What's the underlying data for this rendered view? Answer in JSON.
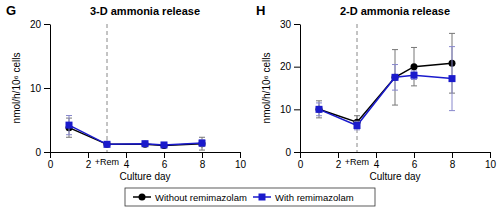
{
  "chart_data": [
    {
      "type": "line",
      "panel_label": "G",
      "title": "3-D ammonia release",
      "x_label": "Culture day",
      "y_label": "nmol/h/10⁶ cells",
      "x": [
        1,
        3,
        5,
        6,
        8
      ],
      "xlim": [
        0,
        10
      ],
      "xticks": [
        0,
        2,
        4,
        6,
        8,
        10
      ],
      "ylim": [
        0,
        20
      ],
      "yticks": [
        0,
        10,
        20
      ],
      "legend": "bottom",
      "annotations": [
        {
          "x": 3,
          "label": "+Rem"
        }
      ],
      "series": [
        {
          "name": "Without remimazolam",
          "color": "#000000",
          "marker": "circle",
          "line_style": "solid",
          "values": [
            3.8,
            1.2,
            1.2,
            1.0,
            1.3
          ],
          "errors": [
            1.5,
            0.3,
            0.3,
            0.2,
            1.0
          ]
        },
        {
          "name": "With remimazolam",
          "color": "#1a1acc",
          "marker": "square",
          "line_style": "solid",
          "values": [
            4.2,
            1.2,
            1.3,
            1.1,
            1.4
          ],
          "errors": [
            1.5,
            0.3,
            0.3,
            0.2,
            0.5
          ]
        }
      ]
    },
    {
      "type": "line",
      "panel_label": "H",
      "title": "2-D ammonia release",
      "x_label": "Culture day",
      "y_label": "nmol/h/10⁶ cells",
      "x": [
        1,
        3,
        5,
        6,
        8
      ],
      "xlim": [
        0,
        10
      ],
      "xticks": [
        0,
        2,
        4,
        6,
        8,
        10
      ],
      "ylim": [
        0,
        30
      ],
      "yticks": [
        0,
        10,
        20,
        30
      ],
      "annotations": [
        {
          "x": 3,
          "label": "+Rem"
        }
      ],
      "series": [
        {
          "color": "#000000",
          "marker": "circle",
          "line_style": "solid",
          "values": [
            10,
            7,
            17.5,
            20,
            20.8
          ],
          "errors": [
            2,
            1.5,
            6.5,
            4.5,
            7
          ]
        },
        {
          "color": "#1a1acc",
          "marker": "square",
          "line_style": "solid",
          "values": [
            10,
            6.2,
            17.5,
            18,
            17.2
          ],
          "errors": [
            1.5,
            1,
            3,
            1,
            7.5
          ]
        }
      ]
    }
  ]
}
